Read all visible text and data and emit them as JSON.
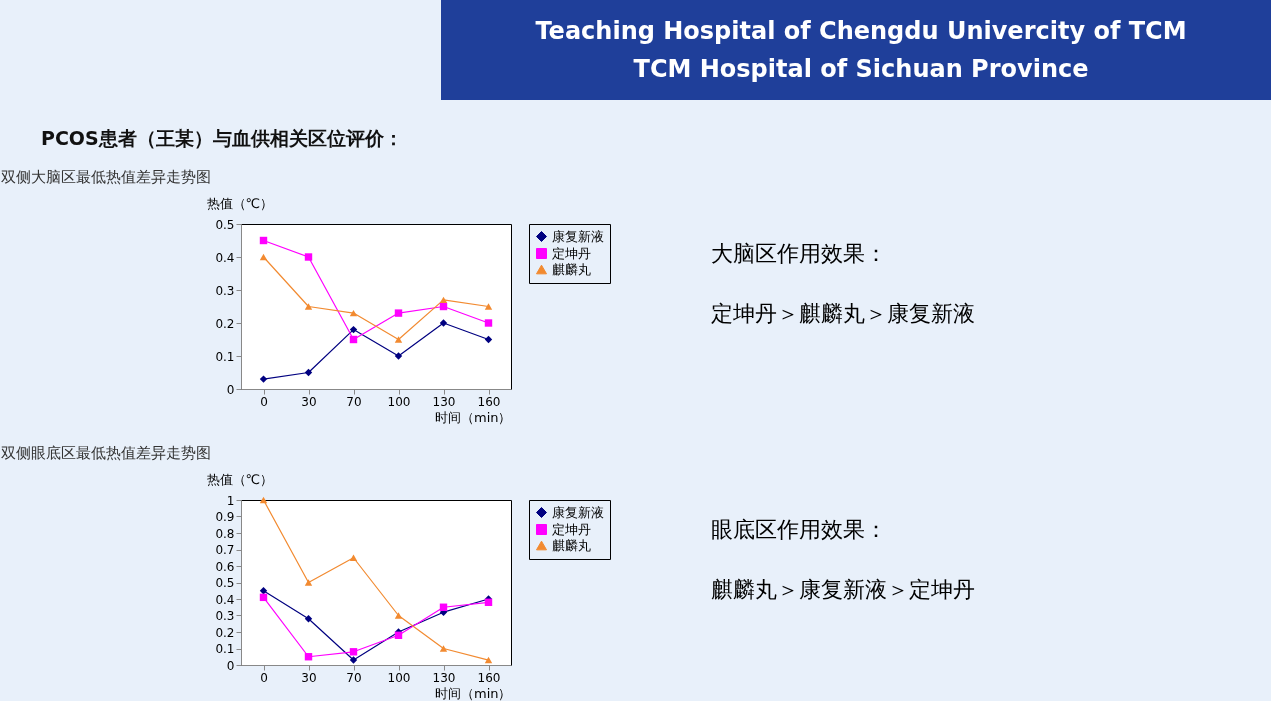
{
  "chart_data": [
    {
      "type": "other",
      "annotations": [
        "Teaching Hospital of Chengdu Univercity of TCM",
        "TCM Hospital of Sichuan Province",
        "PCOS患者（王某）与血供相关区位评价："
      ]
    },
    {
      "type": "line",
      "title": "双侧大脑区最低热值差异走势图",
      "ylabel": "热值（℃）",
      "xlabel": "时间（min）",
      "categories": [
        "0",
        "30",
        "70",
        "100",
        "130",
        "160"
      ],
      "ylim": [
        0,
        0.5
      ],
      "yticks": [
        0,
        0.1,
        0.2,
        0.3,
        0.4,
        0.5
      ],
      "grid": false,
      "legend": "right",
      "line_style": "solid",
      "series": [
        {
          "name": "康复新液",
          "color": "#000080",
          "marker": "diamond",
          "values": [
            0.03,
            0.05,
            0.18,
            0.1,
            0.2,
            0.15
          ]
        },
        {
          "name": "定坤丹",
          "color": "#ff00ff",
          "marker": "square",
          "values": [
            0.45,
            0.4,
            0.15,
            0.23,
            0.25,
            0.2
          ]
        },
        {
          "name": "麒麟丸",
          "color": "#f28a30",
          "marker": "triangle",
          "values": [
            0.4,
            0.25,
            0.23,
            0.15,
            0.27,
            0.25
          ]
        }
      ],
      "annotations": [
        "大脑区作用效果：",
        "定坤丹＞麒麟丸＞康复新液"
      ]
    },
    {
      "type": "line",
      "title": "双侧眼底区最低热值差异走势图",
      "ylabel": "热值（℃）",
      "xlabel": "时间（min）",
      "categories": [
        "0",
        "30",
        "70",
        "100",
        "130",
        "160"
      ],
      "ylim": [
        0,
        1
      ],
      "yticks": [
        0,
        0.1,
        0.2,
        0.3,
        0.4,
        0.5,
        0.6,
        0.7,
        0.8,
        0.9,
        1
      ],
      "grid": false,
      "legend": "right",
      "line_style": "solid",
      "series": [
        {
          "name": "康复新液",
          "color": "#000080",
          "marker": "diamond",
          "values": [
            0.45,
            0.28,
            0.03,
            0.2,
            0.32,
            0.4
          ]
        },
        {
          "name": "定坤丹",
          "color": "#ff00ff",
          "marker": "square",
          "values": [
            0.41,
            0.05,
            0.08,
            0.18,
            0.35,
            0.38
          ]
        },
        {
          "name": "麒麟丸",
          "color": "#f28a30",
          "marker": "triangle",
          "values": [
            1.0,
            0.5,
            0.65,
            0.3,
            0.1,
            0.03
          ]
        }
      ],
      "annotations": [
        "眼底区作用效果：",
        "麒麟丸＞康复新液＞定坤丹"
      ]
    }
  ]
}
